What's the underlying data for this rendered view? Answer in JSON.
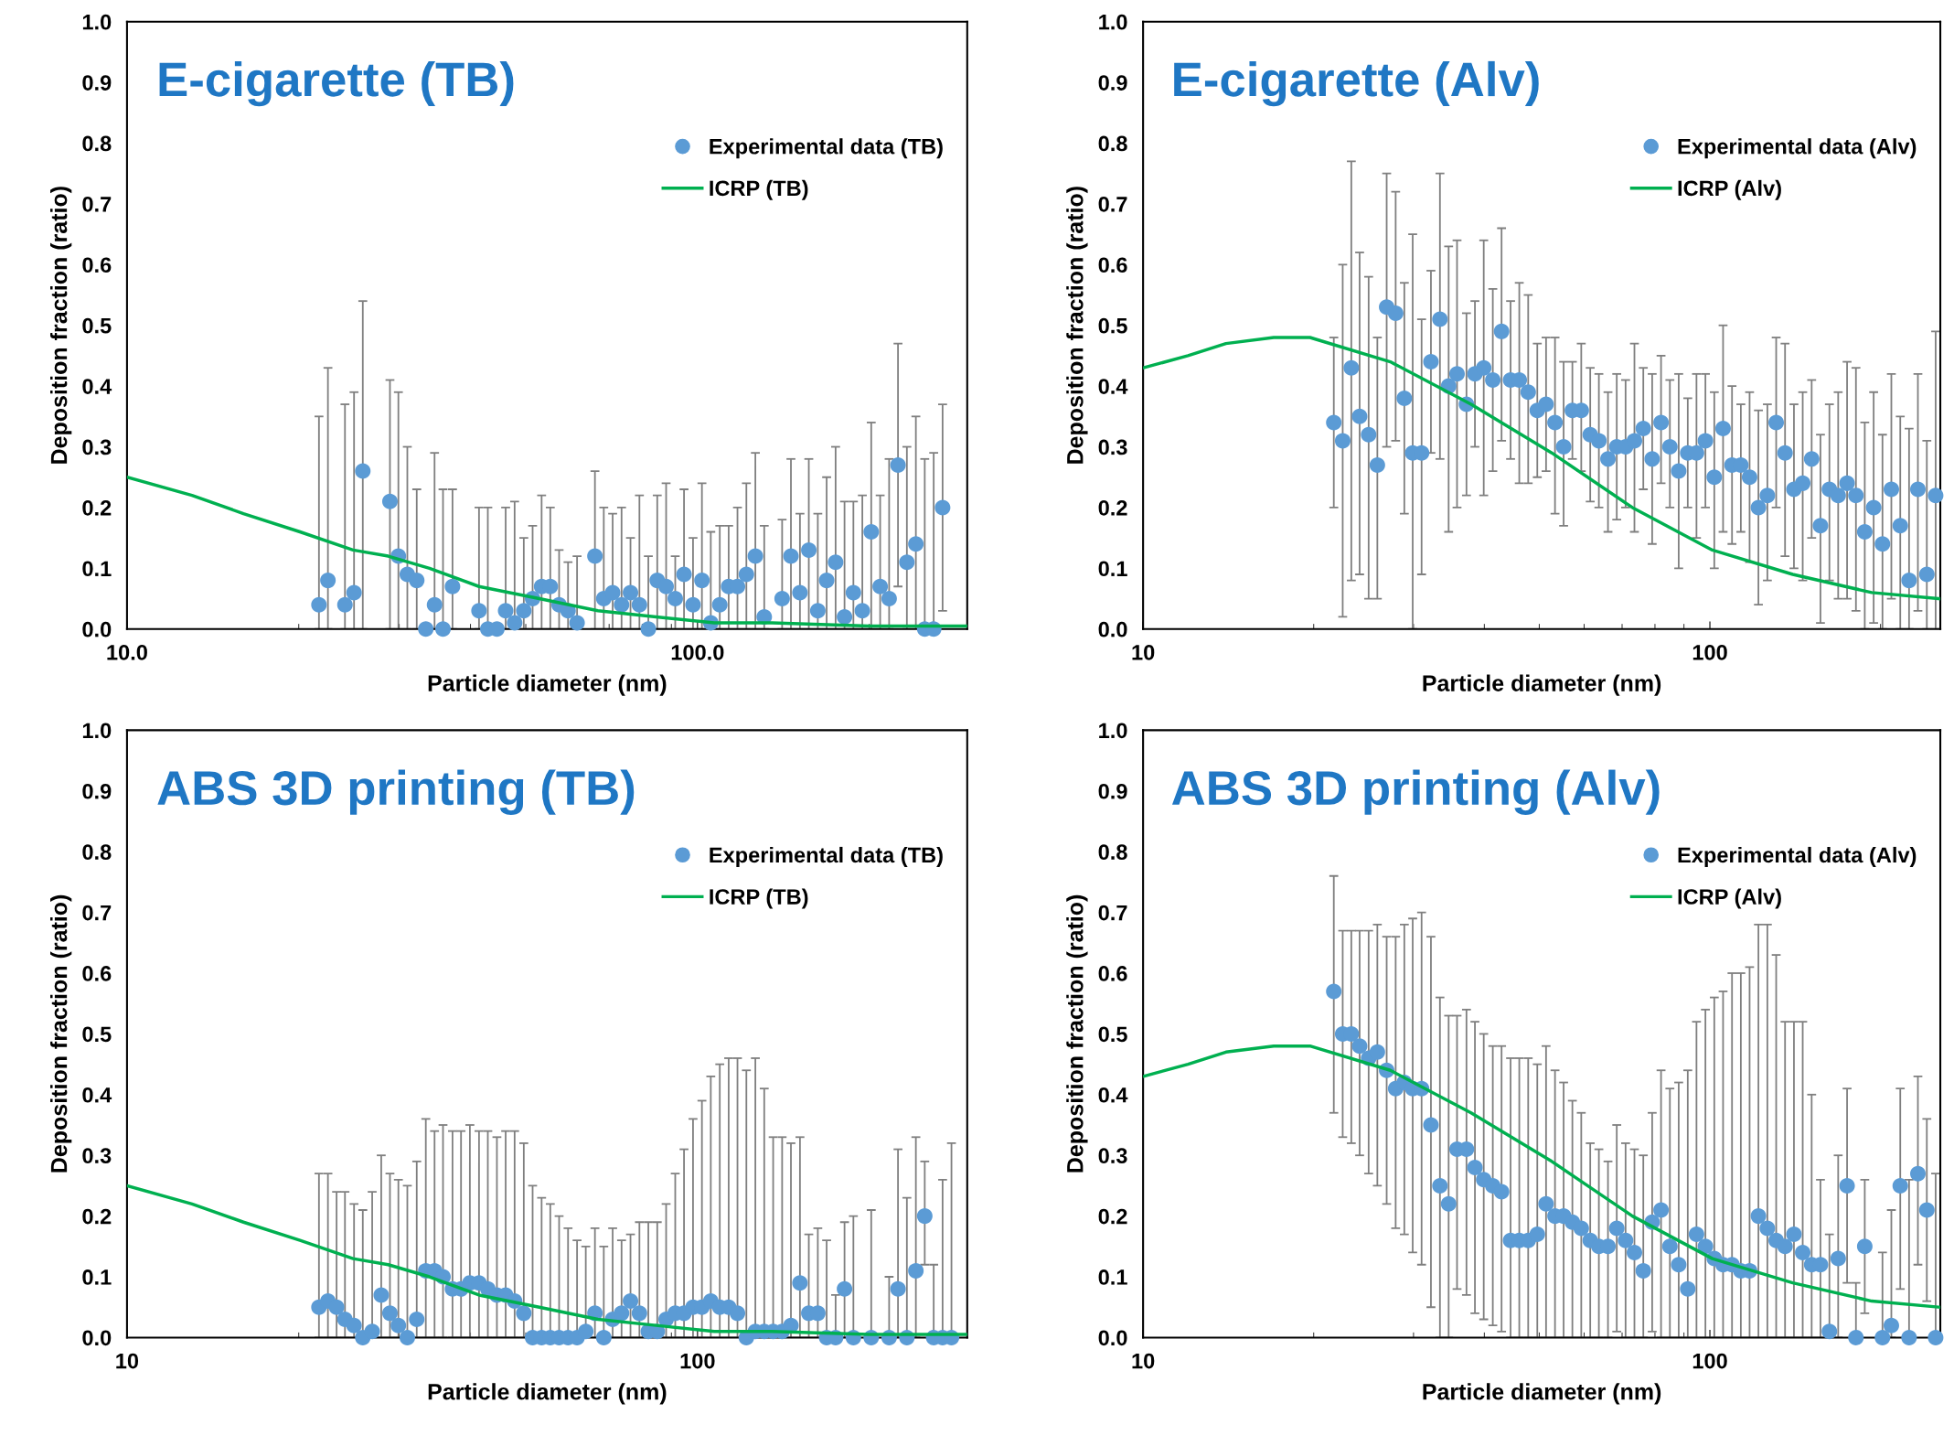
{
  "chart_data": [
    {
      "type": "scatter",
      "title": "E-cigarette (TB)",
      "xlabel": "Particle diameter (nm)",
      "ylabel": "Deposition fraction (ratio)",
      "log": "x",
      "xlim": [
        10,
        297
      ],
      "xticks": [
        {
          "value": 10,
          "label": "10.0"
        },
        {
          "value": 100,
          "label": "100.0"
        }
      ],
      "ylim": [
        0,
        1
      ],
      "yticks": [
        {
          "value": 0,
          "label": "0.0"
        },
        {
          "value": 0.1,
          "label": "0.1"
        },
        {
          "value": 0.2,
          "label": "0.2"
        },
        {
          "value": 0.3,
          "label": "0.3"
        },
        {
          "value": 0.4,
          "label": "0.4"
        },
        {
          "value": 0.5,
          "label": "0.5"
        },
        {
          "value": 0.6,
          "label": "0.6"
        },
        {
          "value": 0.7,
          "label": "0.7"
        },
        {
          "value": 0.8,
          "label": "0.8"
        },
        {
          "value": 0.9,
          "label": "0.9"
        },
        {
          "value": 1,
          "label": "1.0"
        }
      ],
      "grid": false,
      "legend": "top right",
      "series": [
        {
          "name": "Experimental data (TB)",
          "marker": "circle",
          "color": "#5b9bd5",
          "x": [
            21.7,
            22.5,
            24.1,
            25.0,
            25.9,
            28.9,
            29.9,
            31.0,
            32.2,
            33.4,
            34.6,
            35.8,
            37.2,
            41.4,
            42.9,
            44.5,
            46.1,
            47.8,
            49.6,
            51.4,
            53.3,
            55.2,
            57.2,
            59.3,
            61.5,
            66.1,
            68.5,
            71.0,
            73.6,
            76.3,
            79.1,
            82.0,
            85.0,
            88.1,
            91.4,
            94.7,
            98.2,
            101.8,
            105.5,
            109.4,
            113.4,
            117.5,
            121.8,
            126.3,
            130.9,
            140.7,
            145.8,
            151.2,
            156.7,
            162.5,
            168.4,
            174.6,
            181.0,
            187.6,
            194.5,
            201.6,
            209.0,
            216.7,
            224.6,
            232.8,
            241.4,
            250.2,
            259.4,
            268.9
          ],
          "values": [
            0.04,
            0.08,
            0.04,
            0.06,
            0.26,
            0.21,
            0.12,
            0.09,
            0.08,
            0.0,
            0.04,
            0.0,
            0.07,
            0.03,
            0.0,
            0.0,
            0.03,
            0.01,
            0.03,
            0.05,
            0.07,
            0.07,
            0.04,
            0.03,
            0.01,
            0.12,
            0.05,
            0.06,
            0.04,
            0.06,
            0.04,
            0.0,
            0.08,
            0.07,
            0.05,
            0.09,
            0.04,
            0.08,
            0.01,
            0.04,
            0.07,
            0.07,
            0.09,
            0.12,
            0.02,
            0.05,
            0.12,
            0.06,
            0.13,
            0.03,
            0.08,
            0.11,
            0.02,
            0.06,
            0.03,
            0.16,
            0.07,
            0.05,
            0.27,
            0.11,
            0.14,
            0.0,
            0.0,
            0.2
          ],
          "errors": [
            [
              0,
              0.35
            ],
            [
              0,
              0.43
            ],
            [
              0,
              0.37
            ],
            [
              0,
              0.39
            ],
            [
              0,
              0.54
            ],
            [
              0,
              0.41
            ],
            [
              0,
              0.39
            ],
            [
              0,
              0.3
            ],
            [
              0,
              0.23
            ],
            null,
            [
              0,
              0.29
            ],
            [
              0,
              0.23
            ],
            [
              0,
              0.23
            ],
            [
              0,
              0.2
            ],
            [
              0,
              0.2
            ],
            null,
            [
              0,
              0.2
            ],
            [
              0,
              0.21
            ],
            [
              0,
              0.15
            ],
            [
              0,
              0.17
            ],
            [
              0,
              0.22
            ],
            [
              0,
              0.2
            ],
            [
              0,
              0.13
            ],
            [
              0,
              0.11
            ],
            [
              0,
              0.12
            ],
            [
              0,
              0.26
            ],
            [
              0,
              0.2
            ],
            [
              0,
              0.19
            ],
            [
              0,
              0.2
            ],
            [
              0,
              0.15
            ],
            [
              0,
              0.22
            ],
            [
              0,
              0.12
            ],
            [
              0,
              0.22
            ],
            [
              0,
              0.24
            ],
            [
              0,
              0.12
            ],
            [
              0,
              0.23
            ],
            [
              0,
              0.15
            ],
            [
              0,
              0.24
            ],
            [
              0,
              0.16
            ],
            [
              0,
              0.17
            ],
            [
              0,
              0.17
            ],
            [
              0,
              0.2
            ],
            [
              0,
              0.24
            ],
            [
              0,
              0.29
            ],
            [
              0,
              0.17
            ],
            [
              0,
              0.18
            ],
            [
              0,
              0.28
            ],
            [
              0,
              0.19
            ],
            [
              0,
              0.28
            ],
            [
              0,
              0.19
            ],
            [
              0,
              0.25
            ],
            [
              0,
              0.3
            ],
            [
              0,
              0.21
            ],
            [
              0,
              0.21
            ],
            [
              0,
              0.22
            ],
            [
              0,
              0.34
            ],
            [
              0,
              0.22
            ],
            [
              0,
              0.28
            ],
            [
              0.07,
              0.47
            ],
            [
              0,
              0.3
            ],
            [
              0,
              0.35
            ],
            [
              0,
              0.28
            ],
            [
              0,
              0.29
            ],
            [
              0.03,
              0.37
            ]
          ]
        },
        {
          "name": "ICRP (TB)",
          "type": "line",
          "marker": "none",
          "line_style": "solid",
          "color": "#00b050",
          "x": [
            10,
            13,
            16,
            20.1,
            24.9,
            28.7,
            33.9,
            41.4,
            52.8,
            66.9,
            84.6,
            107,
            135,
            200,
            297
          ],
          "values": [
            0.25,
            0.22,
            0.19,
            0.16,
            0.13,
            0.12,
            0.1,
            0.07,
            0.05,
            0.03,
            0.02,
            0.01,
            0.01,
            0.005,
            0.005
          ]
        }
      ]
    },
    {
      "type": "scatter",
      "title": "E-cigarette (Alv)",
      "xlabel": "Particle diameter (nm)",
      "ylabel": "Deposition fraction (ratio)",
      "log": "x",
      "xlim": [
        10,
        255
      ],
      "xticks": [
        10,
        100
      ],
      "ylim": [
        0,
        1
      ],
      "yticks": [
        {
          "value": 0,
          "label": "0.0"
        },
        {
          "value": 0.1,
          "label": "0.1"
        },
        {
          "value": 0.2,
          "label": "0.2"
        },
        {
          "value": 0.3,
          "label": "0.3"
        },
        {
          "value": 0.4,
          "label": "0.4"
        },
        {
          "value": 0.5,
          "label": "0.5"
        },
        {
          "value": 0.6,
          "label": "0.6"
        },
        {
          "value": 0.7,
          "label": "0.7"
        },
        {
          "value": 0.8,
          "label": "0.8"
        },
        {
          "value": 0.9,
          "label": "0.9"
        },
        {
          "value": 1,
          "label": "1.0"
        }
      ],
      "grid": false,
      "legend": "top right",
      "series": [
        {
          "name": "Experimental data (Alv)",
          "marker": "circle",
          "color": "#5b9bd5",
          "x": [
            21.7,
            22.5,
            23.3,
            24.1,
            25.0,
            25.9,
            26.9,
            27.9,
            28.9,
            29.9,
            31.0,
            32.2,
            33.4,
            34.6,
            35.8,
            37.2,
            38.5,
            39.9,
            41.4,
            42.9,
            44.5,
            46.1,
            47.8,
            49.6,
            51.4,
            53.3,
            55.2,
            57.2,
            59.3,
            61.5,
            63.7,
            66.1,
            68.5,
            71.0,
            73.6,
            76.3,
            79.1,
            82.0,
            85.0,
            88.1,
            91.4,
            94.7,
            98.2,
            101.8,
            105.5,
            109.4,
            113.4,
            117.5,
            121.8,
            126.3,
            130.9,
            135.7,
            140.7,
            145.8,
            151.2,
            156.7,
            162.5,
            168.4,
            174.6,
            181.0,
            187.6,
            194.5,
            201.6,
            209.0,
            216.7,
            224.6,
            232.8,
            241.4,
            250.2
          ],
          "values": [
            0.34,
            0.31,
            0.43,
            0.35,
            0.32,
            0.27,
            0.53,
            0.52,
            0.38,
            0.29,
            0.29,
            0.44,
            0.51,
            0.4,
            0.42,
            0.37,
            0.42,
            0.43,
            0.41,
            0.49,
            0.41,
            0.41,
            0.39,
            0.36,
            0.37,
            0.34,
            0.3,
            0.36,
            0.36,
            0.32,
            0.31,
            0.28,
            0.3,
            0.3,
            0.31,
            0.33,
            0.28,
            0.34,
            0.3,
            0.26,
            0.29,
            0.29,
            0.31,
            0.25,
            0.33,
            0.27,
            0.27,
            0.25,
            0.2,
            0.22,
            0.34,
            0.29,
            0.23,
            0.24,
            0.28,
            0.17,
            0.23,
            0.22,
            0.24,
            0.22,
            0.16,
            0.2,
            0.14,
            0.23,
            0.17,
            0.08,
            0.23,
            0.09,
            0.22
          ],
          "errors": [
            [
              0.2,
              0.48
            ],
            [
              0.02,
              0.6
            ],
            [
              0.08,
              0.77
            ],
            [
              0.09,
              0.62
            ],
            [
              0.05,
              0.58
            ],
            [
              0.05,
              0.48
            ],
            [
              0.3,
              0.75
            ],
            [
              0.31,
              0.72
            ],
            [
              0.19,
              0.57
            ],
            [
              0,
              0.65
            ],
            [
              0.09,
              0.51
            ],
            [
              0.29,
              0.59
            ],
            [
              0.28,
              0.75
            ],
            [
              0.16,
              0.63
            ],
            [
              0.2,
              0.64
            ],
            [
              0.22,
              0.52
            ],
            [
              0.3,
              0.54
            ],
            [
              0.22,
              0.64
            ],
            [
              0.26,
              0.56
            ],
            [
              0.31,
              0.66
            ],
            [
              0.28,
              0.54
            ],
            [
              0.24,
              0.57
            ],
            [
              0.24,
              0.55
            ],
            [
              0.25,
              0.47
            ],
            [
              0.26,
              0.48
            ],
            [
              0.19,
              0.48
            ],
            [
              0.17,
              0.44
            ],
            [
              0.28,
              0.44
            ],
            [
              0.26,
              0.47
            ],
            [
              0.21,
              0.43
            ],
            [
              0.2,
              0.42
            ],
            [
              0.16,
              0.39
            ],
            [
              0.18,
              0.42
            ],
            [
              0.2,
              0.41
            ],
            [
              0.16,
              0.47
            ],
            [
              0.23,
              0.43
            ],
            [
              0.14,
              0.42
            ],
            [
              0.24,
              0.45
            ],
            [
              0.2,
              0.41
            ],
            [
              0.1,
              0.42
            ],
            [
              0.2,
              0.38
            ],
            [
              0.15,
              0.42
            ],
            [
              0.2,
              0.42
            ],
            [
              0.1,
              0.39
            ],
            [
              0.16,
              0.5
            ],
            [
              0.14,
              0.4
            ],
            [
              0.16,
              0.37
            ],
            [
              0.11,
              0.39
            ],
            [
              0.04,
              0.36
            ],
            [
              0.08,
              0.37
            ],
            [
              0.2,
              0.48
            ],
            [
              0.12,
              0.47
            ],
            [
              0.1,
              0.37
            ],
            [
              0.08,
              0.39
            ],
            [
              0.15,
              0.41
            ],
            [
              0.01,
              0.32
            ],
            [
              0.08,
              0.37
            ],
            [
              0.05,
              0.39
            ],
            [
              0.05,
              0.44
            ],
            [
              0.03,
              0.43
            ],
            [
              0,
              0.34
            ],
            [
              0.01,
              0.39
            ],
            [
              0,
              0.32
            ],
            [
              0.05,
              0.42
            ],
            [
              0,
              0.35
            ],
            [
              0,
              0.33
            ],
            [
              0.03,
              0.42
            ],
            [
              0,
              0.31
            ],
            [
              0,
              0.49
            ]
          ]
        },
        {
          "name": "ICRP (Alv)",
          "type": "line",
          "marker": "none",
          "line_style": "solid",
          "color": "#00b050",
          "x": [
            10,
            12,
            14,
            17,
            19.7,
            27.3,
            37.9,
            52.6,
            73,
            101,
            140,
            193,
            254
          ],
          "values": [
            0.43,
            0.45,
            0.47,
            0.48,
            0.48,
            0.44,
            0.37,
            0.29,
            0.2,
            0.13,
            0.09,
            0.06,
            0.05
          ]
        }
      ]
    },
    {
      "type": "scatter",
      "title": "ABS 3D printing (TB)",
      "xlabel": "Particle diameter (nm)",
      "ylabel": "Deposition fraction (ratio)",
      "log": "x",
      "xlim": [
        10,
        297
      ],
      "xticks": [
        10,
        100
      ],
      "ylim": [
        0,
        1
      ],
      "yticks": [
        {
          "value": 0,
          "label": "0.0"
        },
        {
          "value": 0.1,
          "label": "0.1"
        },
        {
          "value": 0.2,
          "label": "0.2"
        },
        {
          "value": 0.3,
          "label": "0.3"
        },
        {
          "value": 0.4,
          "label": "0.4"
        },
        {
          "value": 0.5,
          "label": "0.5"
        },
        {
          "value": 0.6,
          "label": "0.6"
        },
        {
          "value": 0.7,
          "label": "0.7"
        },
        {
          "value": 0.8,
          "label": "0.8"
        },
        {
          "value": 0.9,
          "label": "0.9"
        },
        {
          "value": 1,
          "label": "1.0"
        }
      ],
      "grid": false,
      "legend": "top right",
      "series": [
        {
          "name": "Experimental data (TB)",
          "marker": "circle",
          "color": "#5b9bd5",
          "x": [
            21.7,
            22.5,
            23.3,
            24.1,
            25.0,
            25.9,
            26.9,
            27.9,
            28.9,
            29.9,
            31.0,
            32.2,
            33.4,
            34.6,
            35.8,
            37.2,
            38.5,
            39.9,
            41.4,
            42.9,
            44.5,
            46.1,
            47.8,
            49.6,
            51.4,
            53.3,
            55.2,
            57.2,
            59.3,
            61.5,
            63.7,
            66.1,
            68.5,
            71.0,
            73.6,
            76.3,
            79.1,
            82.0,
            85.0,
            88.1,
            91.4,
            94.7,
            98.2,
            101.8,
            105.5,
            109.4,
            113.4,
            117.5,
            121.8,
            126.3,
            130.9,
            135.7,
            140.7,
            145.8,
            151.2,
            156.7,
            162.5,
            168.4,
            174.6,
            181.0,
            187.6,
            201.6,
            216.7,
            224.6,
            232.8,
            241.4,
            250.2,
            259.4,
            268.9,
            278.7
          ],
          "values": [
            0.05,
            0.06,
            0.05,
            0.03,
            0.02,
            0.0,
            0.01,
            0.07,
            0.04,
            0.02,
            0.0,
            0.03,
            0.11,
            0.11,
            0.1,
            0.08,
            0.08,
            0.09,
            0.09,
            0.08,
            0.07,
            0.07,
            0.06,
            0.04,
            0.0,
            0.0,
            0.0,
            0.0,
            0.0,
            0.0,
            0.01,
            0.04,
            0.0,
            0.03,
            0.04,
            0.06,
            0.04,
            0.01,
            0.01,
            0.03,
            0.04,
            0.04,
            0.05,
            0.05,
            0.06,
            0.05,
            0.05,
            0.04,
            0.0,
            0.01,
            0.01,
            0.01,
            0.01,
            0.02,
            0.09,
            0.04,
            0.04,
            0.0,
            0.0,
            0.08,
            0.0,
            0.0,
            0.0,
            0.08,
            0.0,
            0.11,
            0.2,
            0.0,
            0.0,
            0.0
          ],
          "errors": [
            [
              0,
              0.27
            ],
            [
              0,
              0.27
            ],
            [
              0,
              0.24
            ],
            [
              0,
              0.24
            ],
            [
              0,
              0.22
            ],
            [
              0,
              0.21
            ],
            [
              0,
              0.24
            ],
            [
              0,
              0.3
            ],
            [
              0,
              0.27
            ],
            [
              0,
              0.26
            ],
            [
              0,
              0.25
            ],
            [
              0,
              0.29
            ],
            [
              0,
              0.36
            ],
            [
              0,
              0.34
            ],
            [
              0,
              0.35
            ],
            [
              0,
              0.34
            ],
            [
              0,
              0.34
            ],
            [
              0,
              0.35
            ],
            [
              0,
              0.34
            ],
            [
              0,
              0.34
            ],
            [
              0,
              0.33
            ],
            [
              0,
              0.34
            ],
            [
              0,
              0.34
            ],
            [
              0,
              0.32
            ],
            [
              0,
              0.25
            ],
            [
              0,
              0.23
            ],
            [
              0,
              0.22
            ],
            [
              0,
              0.2
            ],
            [
              0,
              0.18
            ],
            [
              0,
              0.16
            ],
            [
              0,
              0.15
            ],
            [
              0,
              0.18
            ],
            [
              0,
              0.15
            ],
            [
              0,
              0.18
            ],
            [
              0,
              0.16
            ],
            [
              0,
              0.17
            ],
            [
              0,
              0.19
            ],
            [
              0,
              0.19
            ],
            [
              0,
              0.19
            ],
            [
              0,
              0.22
            ],
            [
              0,
              0.27
            ],
            [
              0,
              0.31
            ],
            [
              0,
              0.36
            ],
            [
              0,
              0.39
            ],
            [
              0,
              0.43
            ],
            [
              0,
              0.45
            ],
            [
              0,
              0.46
            ],
            [
              0,
              0.46
            ],
            [
              0,
              0.44
            ],
            [
              0,
              0.46
            ],
            [
              0,
              0.41
            ],
            [
              0,
              0.33
            ],
            [
              0,
              0.33
            ],
            [
              0,
              0.32
            ],
            [
              0,
              0.33
            ],
            [
              0,
              0.17
            ],
            [
              0,
              0.18
            ],
            [
              0,
              0.16
            ],
            [
              0,
              0.07
            ],
            [
              0,
              0.19
            ],
            [
              0,
              0.2
            ],
            [
              0,
              0.21
            ],
            [
              0,
              0.1
            ],
            [
              0,
              0.31
            ],
            [
              0,
              0.23
            ],
            [
              0,
              0.33
            ],
            [
              0.12,
              0.29
            ],
            [
              0,
              0.12
            ],
            [
              0,
              0.26
            ],
            [
              0,
              0.32
            ]
          ]
        },
        {
          "name": "ICRP (TB)",
          "type": "line",
          "marker": "none",
          "line_style": "solid",
          "color": "#00b050",
          "x": [
            10,
            13,
            16,
            20.1,
            24.9,
            28.7,
            33.9,
            41.4,
            52.8,
            66.9,
            84.6,
            107,
            135,
            200,
            297
          ],
          "values": [
            0.25,
            0.22,
            0.19,
            0.16,
            0.13,
            0.12,
            0.1,
            0.07,
            0.05,
            0.03,
            0.02,
            0.01,
            0.01,
            0.005,
            0.005
          ]
        }
      ]
    },
    {
      "type": "scatter",
      "title": "ABS 3D printing (Alv)",
      "xlabel": "Particle diameter (nm)",
      "ylabel": "Deposition fraction (ratio)",
      "log": "x",
      "xlim": [
        10,
        255
      ],
      "xticks": [
        10,
        100
      ],
      "ylim": [
        0,
        1
      ],
      "yticks": [
        {
          "value": 0,
          "label": "0.0"
        },
        {
          "value": 0.1,
          "label": "0.1"
        },
        {
          "value": 0.2,
          "label": "0.2"
        },
        {
          "value": 0.3,
          "label": "0.3"
        },
        {
          "value": 0.4,
          "label": "0.4"
        },
        {
          "value": 0.5,
          "label": "0.5"
        },
        {
          "value": 0.6,
          "label": "0.6"
        },
        {
          "value": 0.7,
          "label": "0.7"
        },
        {
          "value": 0.8,
          "label": "0.8"
        },
        {
          "value": 0.9,
          "label": "0.9"
        },
        {
          "value": 1,
          "label": "1.0"
        }
      ],
      "grid": false,
      "legend": "top right",
      "series": [
        {
          "name": "Experimental data (Alv)",
          "marker": "circle",
          "color": "#5b9bd5",
          "x": [
            21.7,
            22.5,
            23.3,
            24.1,
            25.0,
            25.9,
            26.9,
            27.9,
            28.9,
            29.9,
            31.0,
            32.2,
            33.4,
            34.6,
            35.8,
            37.2,
            38.5,
            39.9,
            41.4,
            42.9,
            44.5,
            46.1,
            47.8,
            49.6,
            51.4,
            53.3,
            55.2,
            57.2,
            59.3,
            61.5,
            63.7,
            66.1,
            68.5,
            71.0,
            73.6,
            76.3,
            79.1,
            82.0,
            85.0,
            88.1,
            91.4,
            94.7,
            98.2,
            101.8,
            105.5,
            109.4,
            113.4,
            117.5,
            121.8,
            126.3,
            130.9,
            135.7,
            140.7,
            145.8,
            151.2,
            156.7,
            162.5,
            168.4,
            174.6,
            181.0,
            187.6,
            201.6,
            209.0,
            216.7,
            224.6,
            232.8,
            241.4,
            250.2
          ],
          "values": [
            0.57,
            0.5,
            0.5,
            0.48,
            0.46,
            0.47,
            0.44,
            0.41,
            0.42,
            0.41,
            0.41,
            0.35,
            0.25,
            0.22,
            0.31,
            0.31,
            0.28,
            0.26,
            0.25,
            0.24,
            0.16,
            0.16,
            0.16,
            0.17,
            0.22,
            0.2,
            0.2,
            0.19,
            0.18,
            0.16,
            0.15,
            0.15,
            0.18,
            0.16,
            0.14,
            0.11,
            0.19,
            0.21,
            0.15,
            0.12,
            0.08,
            0.17,
            0.15,
            0.13,
            0.12,
            0.12,
            0.11,
            0.11,
            0.2,
            0.18,
            0.16,
            0.15,
            0.17,
            0.14,
            0.12,
            0.12,
            0.01,
            0.13,
            0.25,
            0.0,
            0.15,
            0.0,
            0.02,
            0.25,
            0.0,
            0.27,
            0.21,
            0.0
          ],
          "errors": [
            [
              0.37,
              0.76
            ],
            [
              0.33,
              0.67
            ],
            [
              0.32,
              0.67
            ],
            [
              0.3,
              0.67
            ],
            [
              0.27,
              0.67
            ],
            [
              0.25,
              0.68
            ],
            [
              0.22,
              0.66
            ],
            [
              0.18,
              0.66
            ],
            [
              0.17,
              0.68
            ],
            [
              0.14,
              0.69
            ],
            [
              0.12,
              0.7
            ],
            [
              0.05,
              0.66
            ],
            [
              0,
              0.56
            ],
            [
              0,
              0.53
            ],
            [
              0.08,
              0.53
            ],
            [
              0.07,
              0.54
            ],
            [
              0.04,
              0.52
            ],
            [
              0.03,
              0.5
            ],
            [
              0.02,
              0.48
            ],
            [
              0.01,
              0.48
            ],
            [
              0,
              0.46
            ],
            [
              0,
              0.46
            ],
            [
              0,
              0.46
            ],
            [
              0,
              0.45
            ],
            [
              0,
              0.48
            ],
            [
              0,
              0.44
            ],
            [
              0,
              0.42
            ],
            [
              0,
              0.39
            ],
            [
              0,
              0.37
            ],
            [
              0,
              0.32
            ],
            [
              0,
              0.31
            ],
            [
              0,
              0.29
            ],
            [
              0.01,
              0.35
            ],
            [
              0,
              0.32
            ],
            [
              0,
              0.31
            ],
            [
              0,
              0.3
            ],
            [
              0.01,
              0.37
            ],
            [
              0,
              0.44
            ],
            [
              0,
              0.41
            ],
            [
              0,
              0.42
            ],
            [
              0,
              0.44
            ],
            [
              0,
              0.52
            ],
            [
              0,
              0.54
            ],
            [
              0,
              0.56
            ],
            [
              0,
              0.57
            ],
            [
              0,
              0.6
            ],
            [
              0,
              0.6
            ],
            [
              0,
              0.61
            ],
            [
              0,
              0.68
            ],
            [
              0,
              0.68
            ],
            [
              0,
              0.63
            ],
            [
              0,
              0.52
            ],
            [
              0,
              0.52
            ],
            [
              0,
              0.52
            ],
            [
              0,
              0.4
            ],
            [
              0,
              0.26
            ],
            [
              0,
              0.17
            ],
            [
              0,
              0.3
            ],
            [
              0.09,
              0.41
            ],
            [
              0,
              0.09
            ],
            [
              0.04,
              0.26
            ],
            [
              0,
              0.14
            ],
            [
              0,
              0.21
            ],
            [
              0.08,
              0.41
            ],
            [
              0,
              0.26
            ],
            [
              0.12,
              0.43
            ],
            [
              0.06,
              0.36
            ],
            [
              0,
              0.27
            ]
          ]
        },
        {
          "name": "ICRP (Alv)",
          "type": "line",
          "marker": "none",
          "line_style": "solid",
          "color": "#00b050",
          "x": [
            10,
            12,
            14,
            17,
            19.7,
            27.3,
            37.9,
            52.6,
            73,
            101,
            140,
            193,
            254
          ],
          "values": [
            0.43,
            0.45,
            0.47,
            0.48,
            0.48,
            0.44,
            0.37,
            0.29,
            0.2,
            0.13,
            0.09,
            0.06,
            0.05
          ]
        }
      ]
    }
  ]
}
